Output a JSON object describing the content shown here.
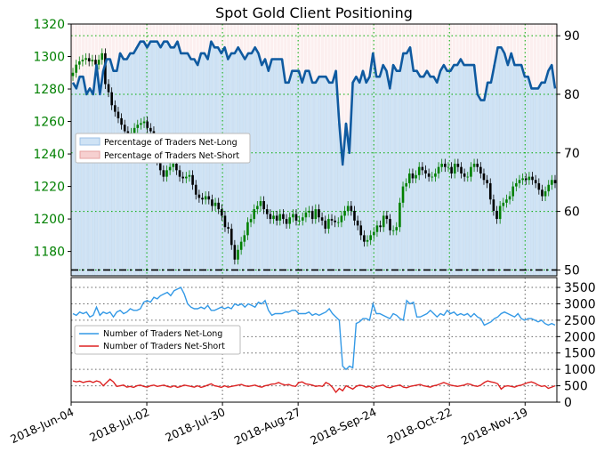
{
  "chart_data": [
    {
      "type": "line",
      "title": "Spot Gold Client Positioning",
      "x_tick_labels": [
        "2018-Jun-04",
        "2018-Jul-02",
        "2018-Jul-30",
        "2018-Aug-27",
        "2018-Sep-24",
        "2018-Oct-22",
        "2018-Nov-19"
      ],
      "left_axis": {
        "ticks": [
          1180,
          1200,
          1220,
          1240,
          1260,
          1280,
          1300,
          1320
        ],
        "range": [
          1165,
          1320
        ],
        "color": "#008000"
      },
      "right_axis": {
        "ticks": [
          50,
          60,
          70,
          80,
          90
        ],
        "range": [
          49,
          92
        ]
      },
      "legend": {
        "placement": "left-center",
        "entries": [
          "Percentage of Traders Net-Long",
          "Percentage of Traders Net-Short"
        ]
      },
      "colors": {
        "net_long_fill": "#cfe3f5",
        "net_short_fill": "#f6d0d0",
        "pct_line": "#0f5aa0",
        "candle_up": "#008000",
        "candle_down": "#000000",
        "grid": "#00aa00"
      },
      "grid": true,
      "reference_line_50": 50,
      "series": [
        {
          "name": "Percentage of Traders Net-Long",
          "axis": "right",
          "values": [
            82,
            81,
            83,
            83,
            80,
            81,
            80,
            85,
            80,
            84,
            86,
            86,
            84,
            84,
            87,
            86,
            86,
            87,
            87,
            88,
            89,
            89,
            88,
            89,
            89,
            89,
            88,
            89,
            89,
            88,
            88,
            89,
            87,
            87,
            87,
            86,
            86,
            85,
            87,
            87,
            86,
            89,
            88,
            88,
            87,
            88,
            86,
            87,
            87,
            88,
            87,
            86,
            87,
            87,
            88,
            87,
            85,
            86,
            84,
            86,
            86,
            86,
            86,
            82,
            82,
            84,
            84,
            84,
            82,
            84,
            84,
            82,
            82,
            83,
            83,
            83,
            82,
            82,
            84,
            75,
            68,
            75,
            70,
            82,
            83,
            82,
            84,
            82,
            83,
            87,
            83,
            83,
            85,
            84,
            81,
            85,
            84,
            84,
            87,
            87,
            88,
            84,
            84,
            83,
            83,
            84,
            83,
            83,
            82,
            84,
            85,
            84,
            84,
            85,
            85,
            86,
            85,
            85,
            85,
            85,
            80,
            79,
            79,
            82,
            82,
            85,
            88,
            88,
            87,
            85,
            87,
            85,
            85,
            85,
            83,
            83,
            81,
            81,
            81,
            82,
            82,
            84,
            85,
            81
          ]
        },
        {
          "name": "Spot Gold",
          "axis": "left",
          "values": [
            1290,
            1295,
            1297,
            1298,
            1299,
            1297,
            1298,
            1295,
            1298,
            1302,
            1283,
            1278,
            1270,
            1266,
            1262,
            1258,
            1254,
            1250,
            1253,
            1256,
            1258,
            1259,
            1260,
            1256,
            1254,
            1249,
            1236,
            1230,
            1226,
            1230,
            1232,
            1234,
            1230,
            1226,
            1225,
            1226,
            1227,
            1221,
            1215,
            1213,
            1212,
            1214,
            1212,
            1208,
            1210,
            1206,
            1202,
            1195,
            1194,
            1184,
            1175,
            1181,
            1186,
            1190,
            1198,
            1200,
            1206,
            1208,
            1211,
            1206,
            1203,
            1200,
            1202,
            1199,
            1203,
            1200,
            1197,
            1201,
            1203,
            1199,
            1199,
            1201,
            1204,
            1205,
            1200,
            1206,
            1201,
            1199,
            1194,
            1200,
            1199,
            1198,
            1198,
            1202,
            1205,
            1208,
            1205,
            1199,
            1196,
            1190,
            1186,
            1187,
            1190,
            1192,
            1196,
            1195,
            1202,
            1200,
            1193,
            1193,
            1195,
            1210,
            1220,
            1222,
            1228,
            1225,
            1227,
            1232,
            1230,
            1228,
            1226,
            1226,
            1228,
            1232,
            1234,
            1232,
            1232,
            1228,
            1234,
            1232,
            1228,
            1226,
            1226,
            1232,
            1234,
            1232,
            1228,
            1224,
            1222,
            1212,
            1205,
            1200,
            1208,
            1210,
            1212,
            1214,
            1220,
            1222,
            1224,
            1225,
            1224,
            1226,
            1224,
            1222,
            1218,
            1214,
            1217,
            1221,
            1224,
            1222
          ]
        }
      ]
    },
    {
      "type": "line",
      "right_axis": {
        "ticks": [
          0,
          500,
          1000,
          1500,
          2000,
          2500,
          3000,
          3500
        ],
        "range": [
          0,
          3800
        ]
      },
      "legend": {
        "placement": "left-center",
        "entries": [
          "Number of Traders Net-Long",
          "Number of Traders Net-Short"
        ]
      },
      "colors": {
        "net_long": "#3399e6",
        "net_short": "#dd2222"
      },
      "grid": true,
      "series": [
        {
          "name": "Number of Traders Net-Long",
          "values": [
            2700,
            2650,
            2750,
            2700,
            2750,
            2600,
            2650,
            2900,
            2650,
            2750,
            2700,
            2750,
            2600,
            2750,
            2800,
            2700,
            2750,
            2850,
            2800,
            2800,
            2850,
            3050,
            3100,
            3050,
            3200,
            3150,
            3250,
            3300,
            3350,
            3250,
            3400,
            3450,
            3500,
            3300,
            3000,
            2900,
            2850,
            2850,
            2900,
            2850,
            2950,
            2800,
            2800,
            2850,
            2900,
            2850,
            2900,
            2850,
            3000,
            2950,
            3000,
            2900,
            3000,
            2950,
            2900,
            3050,
            3000,
            3100,
            2800,
            2650,
            2700,
            2700,
            2700,
            2750,
            2750,
            2800,
            2800,
            2700,
            2700,
            2700,
            2750,
            2650,
            2700,
            2650,
            2700,
            2750,
            2850,
            2700,
            2600,
            2500,
            1100,
            1000,
            1100,
            1050,
            2400,
            2450,
            2550,
            2550,
            2500,
            3000,
            2700,
            2700,
            2650,
            2600,
            2550,
            2700,
            2650,
            2550,
            2500,
            3100,
            3000,
            3050,
            2600,
            2600,
            2650,
            2700,
            2800,
            2700,
            2600,
            2700,
            2650,
            2800,
            2700,
            2750,
            2650,
            2700,
            2650,
            2700,
            2600,
            2700,
            2600,
            2550,
            2350,
            2400,
            2450,
            2550,
            2600,
            2700,
            2750,
            2700,
            2650,
            2600,
            2700,
            2550,
            2500,
            2550,
            2550,
            2500,
            2450,
            2500,
            2400,
            2350,
            2400,
            2350
          ]
        },
        {
          "name": "Number of Traders Net-Short",
          "values": [
            650,
            620,
            640,
            600,
            630,
            640,
            600,
            650,
            620,
            500,
            600,
            700,
            620,
            480,
            500,
            520,
            460,
            480,
            450,
            500,
            520,
            480,
            460,
            500,
            520,
            480,
            500,
            520,
            480,
            460,
            500,
            450,
            480,
            520,
            500,
            480,
            460,
            500,
            450,
            480,
            520,
            560,
            500,
            480,
            450,
            500,
            460,
            480,
            500,
            520,
            540,
            500,
            480,
            500,
            520,
            480,
            460,
            500,
            520,
            550,
            560,
            600,
            550,
            520,
            540,
            500,
            480,
            600,
            620,
            560,
            540,
            520,
            480,
            500,
            480,
            600,
            550,
            450,
            300,
            420,
            350,
            500,
            450,
            400,
            480,
            520,
            500,
            460,
            480,
            420,
            480,
            500,
            520,
            460,
            440,
            480,
            500,
            520,
            460,
            440,
            480,
            500,
            520,
            540,
            500,
            480,
            460,
            500,
            520,
            560,
            600,
            560,
            520,
            500,
            480,
            500,
            520,
            560,
            540,
            500,
            480,
            520,
            600,
            650,
            620,
            600,
            560,
            400,
            480,
            500,
            480,
            460,
            500,
            520,
            560,
            600,
            620,
            580,
            520,
            480,
            500,
            420,
            460,
            500
          ]
        }
      ]
    }
  ]
}
